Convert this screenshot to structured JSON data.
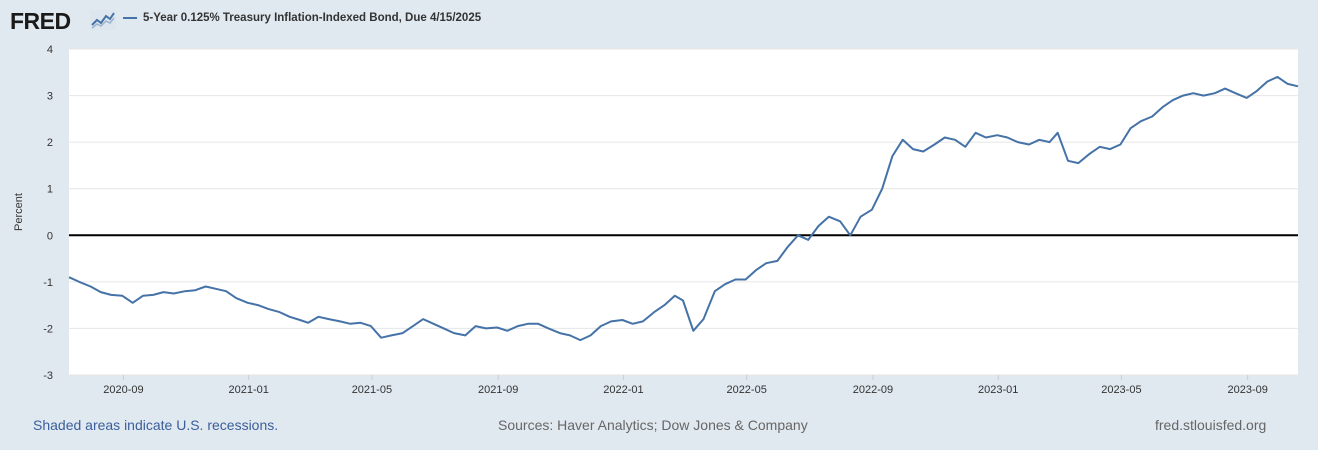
{
  "header": {
    "logo_text": "FRED",
    "logo_icon": "line-chart-icon",
    "series_label": "5-Year 0.125% Treasury Inflation-Indexed Bond, Due 4/15/2025"
  },
  "colors": {
    "series": "#4572a7",
    "background": "#e1e9f0",
    "plot": "#ffffff",
    "grid": "#e6e6e6",
    "zero_line": "#000000",
    "link": "#3a5e9c"
  },
  "footer": {
    "recession_note": "Shaded areas indicate U.S. recessions.",
    "sources": "Sources: Haver Analytics; Dow Jones & Company",
    "site": "fred.stlouisfed.org"
  },
  "chart_data": {
    "type": "line",
    "title": "",
    "xlabel": "",
    "ylabel": "Percent",
    "ylim": [
      -3,
      4
    ],
    "xlim": [
      "2020-07-10",
      "2023-10-20"
    ],
    "yticks": [
      4,
      3,
      2,
      1,
      0,
      -1,
      -2,
      -3
    ],
    "xticks": [
      {
        "date": "2020-09-01",
        "label": "2020-09"
      },
      {
        "date": "2021-01-01",
        "label": "2021-01"
      },
      {
        "date": "2021-05-01",
        "label": "2021-05"
      },
      {
        "date": "2021-09-01",
        "label": "2021-09"
      },
      {
        "date": "2022-01-01",
        "label": "2022-01"
      },
      {
        "date": "2022-05-01",
        "label": "2022-05"
      },
      {
        "date": "2022-09-01",
        "label": "2022-09"
      },
      {
        "date": "2023-01-01",
        "label": "2023-01"
      },
      {
        "date": "2023-05-01",
        "label": "2023-05"
      },
      {
        "date": "2023-09-01",
        "label": "2023-09"
      }
    ],
    "grid": true,
    "legend": "top-left",
    "series": [
      {
        "name": "5-Year 0.125% Treasury Inflation-Indexed Bond, Due 4/15/2025",
        "x": [
          "2020-07-10",
          "2020-07-20",
          "2020-07-31",
          "2020-08-10",
          "2020-08-20",
          "2020-08-31",
          "2020-09-10",
          "2020-09-20",
          "2020-09-30",
          "2020-10-10",
          "2020-10-20",
          "2020-10-31",
          "2020-11-10",
          "2020-11-20",
          "2020-11-30",
          "2020-12-10",
          "2020-12-20",
          "2020-12-31",
          "2021-01-10",
          "2021-01-20",
          "2021-01-31",
          "2021-02-10",
          "2021-02-20",
          "2021-02-28",
          "2021-03-10",
          "2021-03-20",
          "2021-03-31",
          "2021-04-10",
          "2021-04-20",
          "2021-04-30",
          "2021-05-10",
          "2021-05-20",
          "2021-05-31",
          "2021-06-10",
          "2021-06-20",
          "2021-06-30",
          "2021-07-10",
          "2021-07-20",
          "2021-07-31",
          "2021-08-10",
          "2021-08-20",
          "2021-08-31",
          "2021-09-10",
          "2021-09-20",
          "2021-09-30",
          "2021-10-10",
          "2021-10-20",
          "2021-10-31",
          "2021-11-10",
          "2021-11-20",
          "2021-11-30",
          "2021-12-10",
          "2021-12-20",
          "2021-12-31",
          "2022-01-10",
          "2022-01-20",
          "2022-01-31",
          "2022-02-10",
          "2022-02-20",
          "2022-02-28",
          "2022-03-10",
          "2022-03-20",
          "2022-03-31",
          "2022-04-10",
          "2022-04-20",
          "2022-04-30",
          "2022-05-10",
          "2022-05-20",
          "2022-05-31",
          "2022-06-10",
          "2022-06-20",
          "2022-06-30",
          "2022-07-10",
          "2022-07-20",
          "2022-07-31",
          "2022-08-10",
          "2022-08-20",
          "2022-08-31",
          "2022-09-10",
          "2022-09-20",
          "2022-09-30",
          "2022-10-10",
          "2022-10-20",
          "2022-10-31",
          "2022-11-10",
          "2022-11-20",
          "2022-11-30",
          "2022-12-10",
          "2022-12-20",
          "2022-12-31",
          "2023-01-10",
          "2023-01-20",
          "2023-01-31",
          "2023-02-10",
          "2023-02-20",
          "2023-02-28",
          "2023-03-10",
          "2023-03-20",
          "2023-03-31",
          "2023-04-10",
          "2023-04-20",
          "2023-04-30",
          "2023-05-10",
          "2023-05-20",
          "2023-05-31",
          "2023-06-10",
          "2023-06-20",
          "2023-06-30",
          "2023-07-10",
          "2023-07-20",
          "2023-07-31",
          "2023-08-10",
          "2023-08-20",
          "2023-08-31",
          "2023-09-10",
          "2023-09-20",
          "2023-09-30",
          "2023-10-10",
          "2023-10-20"
        ],
        "values": [
          -0.9,
          -1.0,
          -1.1,
          -1.22,
          -1.28,
          -1.3,
          -1.45,
          -1.3,
          -1.28,
          -1.22,
          -1.25,
          -1.2,
          -1.18,
          -1.1,
          -1.15,
          -1.2,
          -1.35,
          -1.45,
          -1.5,
          -1.58,
          -1.65,
          -1.75,
          -1.82,
          -1.88,
          -1.75,
          -1.8,
          -1.85,
          -1.9,
          -1.88,
          -1.95,
          -2.2,
          -2.15,
          -2.1,
          -1.95,
          -1.8,
          -1.9,
          -2.0,
          -2.1,
          -2.15,
          -1.95,
          -2.0,
          -1.98,
          -2.05,
          -1.95,
          -1.9,
          -1.9,
          -2.0,
          -2.1,
          -2.15,
          -2.25,
          -2.15,
          -1.95,
          -1.85,
          -1.82,
          -1.9,
          -1.85,
          -1.65,
          -1.5,
          -1.3,
          -1.4,
          -2.05,
          -1.8,
          -1.2,
          -1.05,
          -0.95,
          -0.95,
          -0.75,
          -0.6,
          -0.55,
          -0.25,
          0.0,
          -0.1,
          0.2,
          0.4,
          0.3,
          0.0,
          0.4,
          0.55,
          1.0,
          1.7,
          2.05,
          1.85,
          1.8,
          1.95,
          2.1,
          2.05,
          1.9,
          2.2,
          2.1,
          2.15,
          2.1,
          2.0,
          1.95,
          2.05,
          2.0,
          2.2,
          1.6,
          1.55,
          1.75,
          1.9,
          1.85,
          1.95,
          2.3,
          2.45,
          2.55,
          2.75,
          2.9,
          3.0,
          3.05,
          3.0,
          3.05,
          3.15,
          3.05,
          2.95,
          3.1,
          3.3,
          3.4,
          3.25,
          3.2
        ]
      }
    ]
  }
}
